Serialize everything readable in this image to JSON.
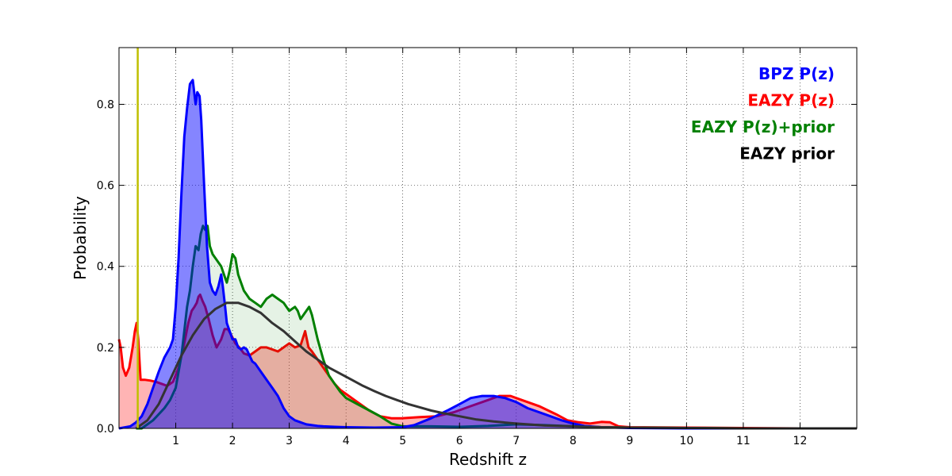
{
  "chart_data": {
    "type": "area",
    "xlabel": "Redshift z",
    "ylabel": "Probability",
    "xlim": [
      0,
      13
    ],
    "ylim": [
      0,
      0.94
    ],
    "xticks": [
      1,
      2,
      3,
      4,
      5,
      6,
      7,
      8,
      9,
      10,
      11,
      12
    ],
    "yticks": [
      0.0,
      0.2,
      0.4,
      0.6,
      0.8
    ],
    "ytick_labels": [
      "0.0",
      "0.2",
      "0.4",
      "0.6",
      "0.8"
    ],
    "grid": true,
    "legend_position": "top-right",
    "vline": {
      "x": 0.33,
      "color": "#bfbf00"
    },
    "series": [
      {
        "name": "EAZY P(z)",
        "color": "#ff0000",
        "fill": "#ff4d4d",
        "fill_opacity": 0.42,
        "x": [
          0,
          0.03,
          0.07,
          0.12,
          0.18,
          0.24,
          0.28,
          0.31,
          0.34,
          0.38,
          0.45,
          0.55,
          0.65,
          0.75,
          0.85,
          0.95,
          1.05,
          1.15,
          1.22,
          1.28,
          1.33,
          1.37,
          1.4,
          1.43,
          1.47,
          1.52,
          1.58,
          1.65,
          1.72,
          1.8,
          1.86,
          1.92,
          1.98,
          2.05,
          2.12,
          2.2,
          2.3,
          2.4,
          2.5,
          2.6,
          2.7,
          2.8,
          2.9,
          3.0,
          3.1,
          3.2,
          3.28,
          3.34,
          3.4,
          3.5,
          3.6,
          3.7,
          3.8,
          3.9,
          4.0,
          4.2,
          4.4,
          4.6,
          4.8,
          5.0,
          5.3,
          5.6,
          5.9,
          6.2,
          6.5,
          6.7,
          6.9,
          7.1,
          7.4,
          7.7,
          7.9,
          8.1,
          8.3,
          8.5,
          8.65,
          8.8,
          9.0,
          10,
          11,
          12,
          13
        ],
        "y": [
          0.22,
          0.2,
          0.15,
          0.13,
          0.15,
          0.2,
          0.24,
          0.26,
          0.22,
          0.12,
          0.12,
          0.118,
          0.115,
          0.11,
          0.105,
          0.115,
          0.15,
          0.21,
          0.26,
          0.29,
          0.3,
          0.31,
          0.325,
          0.33,
          0.315,
          0.3,
          0.27,
          0.23,
          0.2,
          0.22,
          0.245,
          0.245,
          0.23,
          0.21,
          0.2,
          0.185,
          0.18,
          0.19,
          0.2,
          0.2,
          0.195,
          0.19,
          0.2,
          0.21,
          0.2,
          0.205,
          0.24,
          0.2,
          0.19,
          0.17,
          0.15,
          0.13,
          0.11,
          0.095,
          0.085,
          0.065,
          0.045,
          0.03,
          0.025,
          0.025,
          0.028,
          0.03,
          0.04,
          0.055,
          0.07,
          0.08,
          0.08,
          0.07,
          0.055,
          0.035,
          0.02,
          0.015,
          0.012,
          0.016,
          0.015,
          0.005,
          0.003,
          0.002,
          0.001,
          0.0,
          0.0
        ]
      },
      {
        "name": "EAZY P(z)+prior",
        "color": "#008000",
        "fill": "#008000",
        "fill_opacity": 0.1,
        "x": [
          0.3,
          0.4,
          0.5,
          0.6,
          0.7,
          0.8,
          0.9,
          1.0,
          1.1,
          1.15,
          1.2,
          1.25,
          1.3,
          1.35,
          1.4,
          1.44,
          1.48,
          1.52,
          1.56,
          1.6,
          1.65,
          1.7,
          1.75,
          1.8,
          1.85,
          1.9,
          1.95,
          2.0,
          2.05,
          2.1,
          2.15,
          2.2,
          2.25,
          2.3,
          2.4,
          2.5,
          2.6,
          2.7,
          2.8,
          2.9,
          3.0,
          3.1,
          3.15,
          3.2,
          3.25,
          3.3,
          3.35,
          3.4,
          3.5,
          3.6,
          3.7,
          3.8,
          3.9,
          4.0,
          4.2,
          4.4,
          4.6,
          4.8,
          5.0,
          5.5,
          6.0,
          6.5,
          7.0,
          7.5,
          8.0,
          8.5,
          9.0,
          10,
          11,
          12,
          13
        ],
        "y": [
          0.0,
          0.0,
          0.01,
          0.02,
          0.035,
          0.05,
          0.07,
          0.1,
          0.18,
          0.24,
          0.3,
          0.34,
          0.4,
          0.45,
          0.44,
          0.48,
          0.5,
          0.49,
          0.5,
          0.45,
          0.43,
          0.42,
          0.41,
          0.4,
          0.38,
          0.36,
          0.39,
          0.43,
          0.42,
          0.38,
          0.36,
          0.34,
          0.33,
          0.32,
          0.31,
          0.3,
          0.32,
          0.33,
          0.32,
          0.31,
          0.29,
          0.3,
          0.29,
          0.27,
          0.28,
          0.29,
          0.3,
          0.28,
          0.22,
          0.17,
          0.13,
          0.11,
          0.09,
          0.075,
          0.06,
          0.045,
          0.03,
          0.012,
          0.005,
          0.005,
          0.004,
          0.006,
          0.01,
          0.008,
          0.005,
          0.003,
          0.002,
          0.001,
          0.0,
          0.0,
          0.0
        ]
      },
      {
        "name": "BPZ P(z)",
        "color": "#0000ff",
        "fill": "#0000ff",
        "fill_opacity": 0.48,
        "x": [
          0,
          0.2,
          0.3,
          0.4,
          0.5,
          0.6,
          0.7,
          0.8,
          0.9,
          0.95,
          1.0,
          1.05,
          1.1,
          1.15,
          1.2,
          1.25,
          1.3,
          1.35,
          1.38,
          1.42,
          1.45,
          1.5,
          1.55,
          1.6,
          1.65,
          1.7,
          1.75,
          1.8,
          1.83,
          1.87,
          1.9,
          1.95,
          2.0,
          2.05,
          2.1,
          2.15,
          2.2,
          2.25,
          2.3,
          2.35,
          2.4,
          2.5,
          2.6,
          2.7,
          2.8,
          2.9,
          3.0,
          3.1,
          3.2,
          3.3,
          3.4,
          3.5,
          3.6,
          3.8,
          4.0,
          4.5,
          5.0,
          5.2,
          5.5,
          5.8,
          6.0,
          6.2,
          6.4,
          6.6,
          6.8,
          7.0,
          7.2,
          7.5,
          7.8,
          8.0,
          8.2,
          8.5,
          9.0,
          10,
          11,
          12,
          13
        ],
        "y": [
          0.0,
          0.005,
          0.015,
          0.03,
          0.06,
          0.1,
          0.14,
          0.175,
          0.2,
          0.22,
          0.3,
          0.42,
          0.58,
          0.72,
          0.79,
          0.85,
          0.86,
          0.8,
          0.83,
          0.82,
          0.76,
          0.6,
          0.45,
          0.36,
          0.34,
          0.33,
          0.35,
          0.38,
          0.35,
          0.3,
          0.26,
          0.24,
          0.22,
          0.22,
          0.2,
          0.195,
          0.2,
          0.195,
          0.18,
          0.165,
          0.16,
          0.14,
          0.12,
          0.1,
          0.08,
          0.05,
          0.03,
          0.02,
          0.015,
          0.01,
          0.008,
          0.006,
          0.005,
          0.004,
          0.003,
          0.002,
          0.003,
          0.008,
          0.025,
          0.045,
          0.06,
          0.075,
          0.08,
          0.08,
          0.075,
          0.065,
          0.05,
          0.035,
          0.02,
          0.012,
          0.006,
          0.003,
          0.001,
          0.0,
          0.0,
          0.0,
          0.0
        ]
      },
      {
        "name": "EAZY prior",
        "color": "#333333",
        "fill": null,
        "fill_opacity": 0,
        "x": [
          0.3,
          0.5,
          0.7,
          0.9,
          1.1,
          1.3,
          1.5,
          1.7,
          1.9,
          2.1,
          2.3,
          2.5,
          2.7,
          2.9,
          3.1,
          3.3,
          3.5,
          3.7,
          3.9,
          4.1,
          4.3,
          4.5,
          4.7,
          4.9,
          5.1,
          5.3,
          5.5,
          5.7,
          6.0,
          6.3,
          6.6,
          7.0,
          7.5,
          8.0,
          8.5,
          9.0,
          10,
          11,
          12,
          13
        ],
        "y": [
          0.0,
          0.02,
          0.06,
          0.12,
          0.18,
          0.23,
          0.27,
          0.295,
          0.31,
          0.31,
          0.3,
          0.285,
          0.26,
          0.24,
          0.215,
          0.19,
          0.17,
          0.15,
          0.135,
          0.12,
          0.105,
          0.092,
          0.08,
          0.07,
          0.06,
          0.052,
          0.044,
          0.038,
          0.03,
          0.022,
          0.017,
          0.012,
          0.007,
          0.005,
          0.003,
          0.002,
          0.001,
          0.0,
          0.0,
          0.0
        ]
      }
    ],
    "legend": [
      {
        "label": "BPZ P(z)",
        "color": "#0000ff"
      },
      {
        "label": "EAZY P(z)",
        "color": "#ff0000"
      },
      {
        "label": "EAZY P(z)+prior",
        "color": "#008000"
      },
      {
        "label": "EAZY prior",
        "color": "#000000"
      }
    ]
  }
}
